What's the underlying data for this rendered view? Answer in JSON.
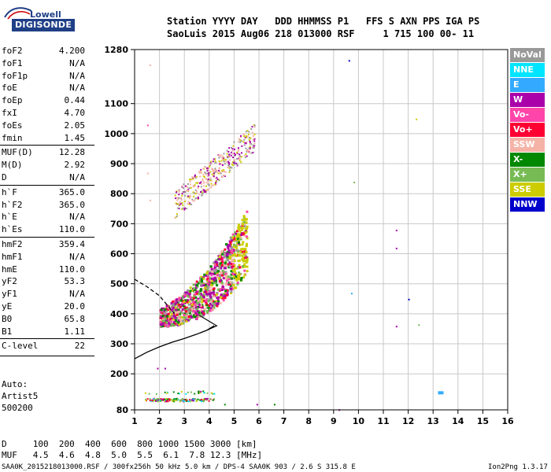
{
  "logo": {
    "line1": "Lowell",
    "line2": "DIGISONDE"
  },
  "header": {
    "line1": "Station YYYY DAY   DDD HHMMSS P1   FFS S AXN PPS IGA PS",
    "line2": "SaoLuis 2015 Aug06 218 013000 RSF     1 715 100 00- 11"
  },
  "param_groups": [
    [
      {
        "name": "foF2",
        "value": "4.200"
      },
      {
        "name": "foF1",
        "value": "N/A"
      },
      {
        "name": "foF1p",
        "value": "N/A"
      },
      {
        "name": "foE",
        "value": "N/A"
      },
      {
        "name": "foEp",
        "value": "0.44"
      },
      {
        "name": "fxI",
        "value": "4.70"
      },
      {
        "name": "foEs",
        "value": "2.05"
      },
      {
        "name": "fmin",
        "value": "1.45"
      }
    ],
    [
      {
        "name": "MUF(D)",
        "value": "12.28"
      },
      {
        "name": "M(D)",
        "value": "2.92"
      },
      {
        "name": "D",
        "value": "N/A"
      }
    ],
    [
      {
        "name": "h`F",
        "value": "365.0"
      },
      {
        "name": "h`F2",
        "value": "365.0"
      },
      {
        "name": "h`E",
        "value": "N/A"
      },
      {
        "name": "h`Es",
        "value": "110.0"
      }
    ],
    [
      {
        "name": "hmF2",
        "value": "359.4"
      },
      {
        "name": "hmF1",
        "value": "N/A"
      },
      {
        "name": "hmE",
        "value": "110.0"
      },
      {
        "name": "yF2",
        "value": "53.3"
      },
      {
        "name": "yF1",
        "value": "N/A"
      },
      {
        "name": "yE",
        "value": "20.0"
      },
      {
        "name": "B0",
        "value": "65.8"
      },
      {
        "name": "B1",
        "value": "1.11"
      }
    ],
    [
      {
        "name": "C-level",
        "value": "22"
      }
    ]
  ],
  "auto": {
    "line1": "Auto:",
    "line2": "Artist5",
    "line3": "500200"
  },
  "muf_table": {
    "d_row": "D     100  200  400  600  800 1000 1500 3000 [km]",
    "muf_row": "MUF   4.5  4.6  4.8  5.0  5.5  6.1  7.8 12.3 [MHz]"
  },
  "footer": {
    "left": "SAA0K_2015218013000.RSF / 300fx256h 50 kHz 5.0 km / DPS-4 SAA0K 903 / 2.6 S 315.8 E",
    "right": "Ion2Png 1.3.17"
  },
  "legend": [
    {
      "label": "NoVal",
      "color": "#999999"
    },
    {
      "label": "NNE",
      "color": "#00e5ff"
    },
    {
      "label": "E",
      "color": "#33aaff"
    },
    {
      "label": "W",
      "color": "#aa00aa"
    },
    {
      "label": "Vo-",
      "color": "#ff44aa"
    },
    {
      "label": "Vo+",
      "color": "#ff0033"
    },
    {
      "label": "SSW",
      "color": "#f5b3a8"
    },
    {
      "label": "X-",
      "color": "#008800"
    },
    {
      "label": "X+",
      "color": "#77bb55"
    },
    {
      "label": "SSE",
      "color": "#cccc00"
    },
    {
      "label": "NNW",
      "color": "#0000cc"
    }
  ],
  "chart_data": {
    "type": "scatter",
    "title": "",
    "xlabel": "",
    "ylabel": "",
    "xlim": [
      1,
      16
    ],
    "ylim": [
      80,
      1280
    ],
    "x_ticks": [
      1,
      2,
      3,
      4,
      5,
      6,
      7,
      8,
      9,
      10,
      11,
      12,
      13,
      14,
      15,
      16
    ],
    "y_ticks": [
      80,
      200,
      300,
      400,
      500,
      600,
      700,
      800,
      900,
      1000,
      1100,
      1280
    ],
    "grid": true,
    "ionogram_regions": [
      {
        "name": "F2 trace",
        "x": [
          2.0,
          5.5
        ],
        "y": [
          350,
          700
        ],
        "dominant": [
          "W",
          "Vo+",
          "X-",
          "SSE"
        ]
      },
      {
        "name": "F2 multihop",
        "x": [
          2.5,
          5.9
        ],
        "y": [
          720,
          1000
        ],
        "dominant": [
          "SSW",
          "SSE"
        ]
      },
      {
        "name": "Es trace",
        "x": [
          1.4,
          4.0
        ],
        "y": [
          100,
          160
        ],
        "dominant": [
          "X-",
          "SSE",
          "W"
        ]
      }
    ],
    "series": [
      {
        "name": "hmF2 profile",
        "type": "line",
        "style": "solid",
        "color": "#000000",
        "x": [
          1.0,
          1.5,
          2.0,
          2.5,
          3.0,
          3.5,
          3.9,
          4.2
        ],
        "y": [
          250,
          272,
          290,
          305,
          318,
          332,
          345,
          360
        ]
      },
      {
        "name": "model extension",
        "type": "line",
        "style": "dashed",
        "color": "#000000",
        "x": [
          1.0,
          1.5,
          2.0,
          2.3,
          2.6
        ],
        "y": [
          515,
          490,
          460,
          430,
          400
        ]
      }
    ]
  }
}
